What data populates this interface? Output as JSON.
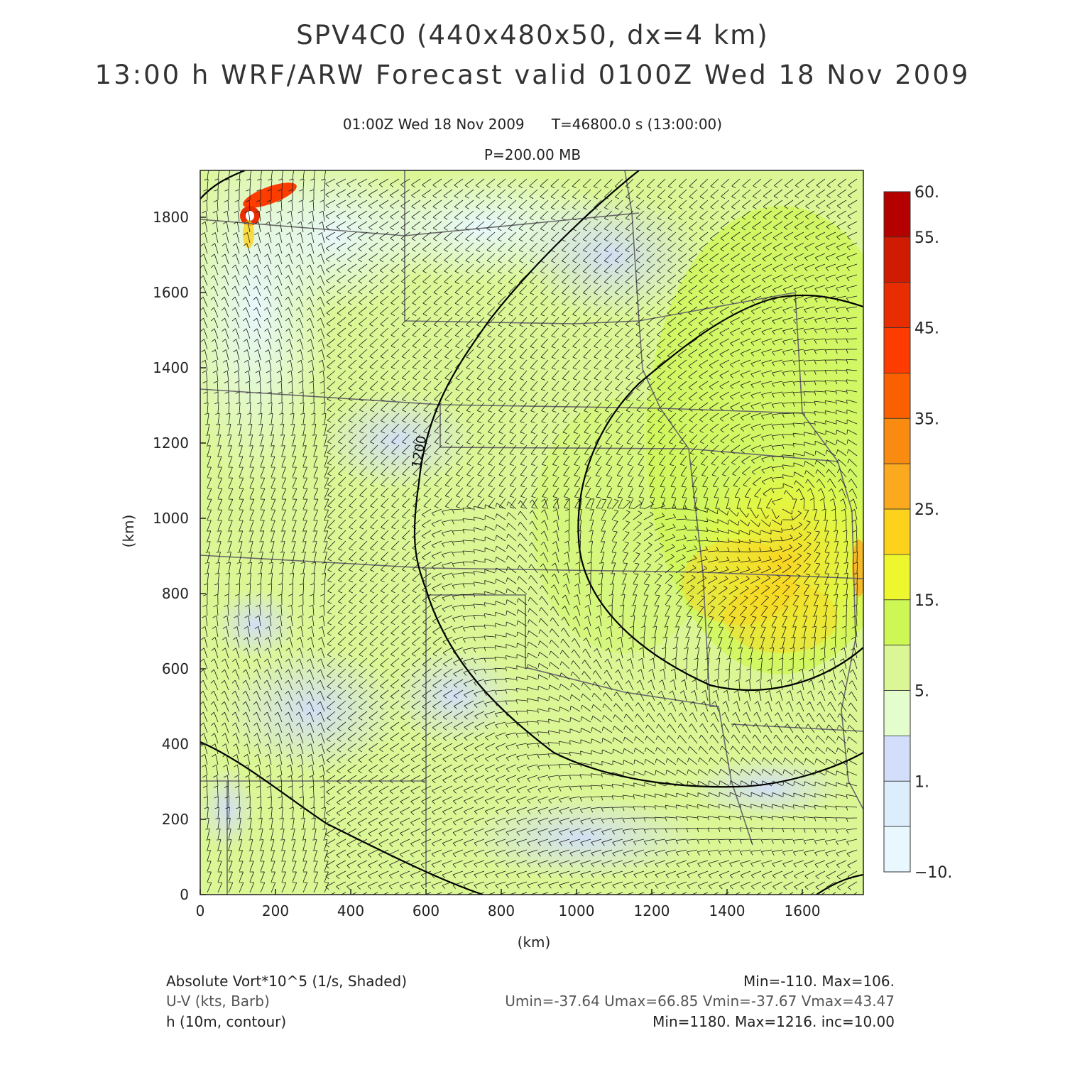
{
  "header": {
    "title": "SPV4C0 (440x480x50, dx=4 km)",
    "subtitle": "13:00 h WRF/ARW Forecast valid 0100Z Wed 18 Nov 2009",
    "valid_time": "01:00Z Wed 18 Nov 2009",
    "model_time": "T=46800.0 s (13:00:00)",
    "level": "P=200.00 MB"
  },
  "map": {
    "x_axis_label": "(km)",
    "y_axis_label": "(km)",
    "x_ticks": [
      "0",
      "200",
      "400",
      "600",
      "800",
      "1000",
      "1200",
      "1400",
      "1600"
    ],
    "y_ticks": [
      "0",
      "200",
      "400",
      "600",
      "800",
      "1000",
      "1200",
      "1400",
      "1600",
      "1800"
    ],
    "contour_label": "1200",
    "colorbar": {
      "labels": [
        "60.",
        "55.",
        "45.",
        "35.",
        "25.",
        "15.",
        "5.",
        "1.",
        "-10."
      ],
      "colors": [
        "#b50000",
        "#cf1c00",
        "#e82e00",
        "#ff3c00",
        "#fb6000",
        "#f88b10",
        "#fbaa20",
        "#fcd21c",
        "#eef72e",
        "#cdf754",
        "#dbf795",
        "#e4fdcd",
        "#d2defa",
        "#dceefc",
        "#e8f8fe"
      ]
    }
  },
  "footer": {
    "vort_label": "Absolute Vort*10^5 (1/s, Shaded)",
    "vort_stats": "Min=-110. Max=106.",
    "wind_label": "U-V (kts, Barb)",
    "wind_stats": "Umin=-37.64 Umax=66.85 Vmin=-37.67 Vmax=43.47",
    "height_label": "h (10m, contour)",
    "height_stats": "Min=1180. Max=1216. inc=10.00"
  }
}
